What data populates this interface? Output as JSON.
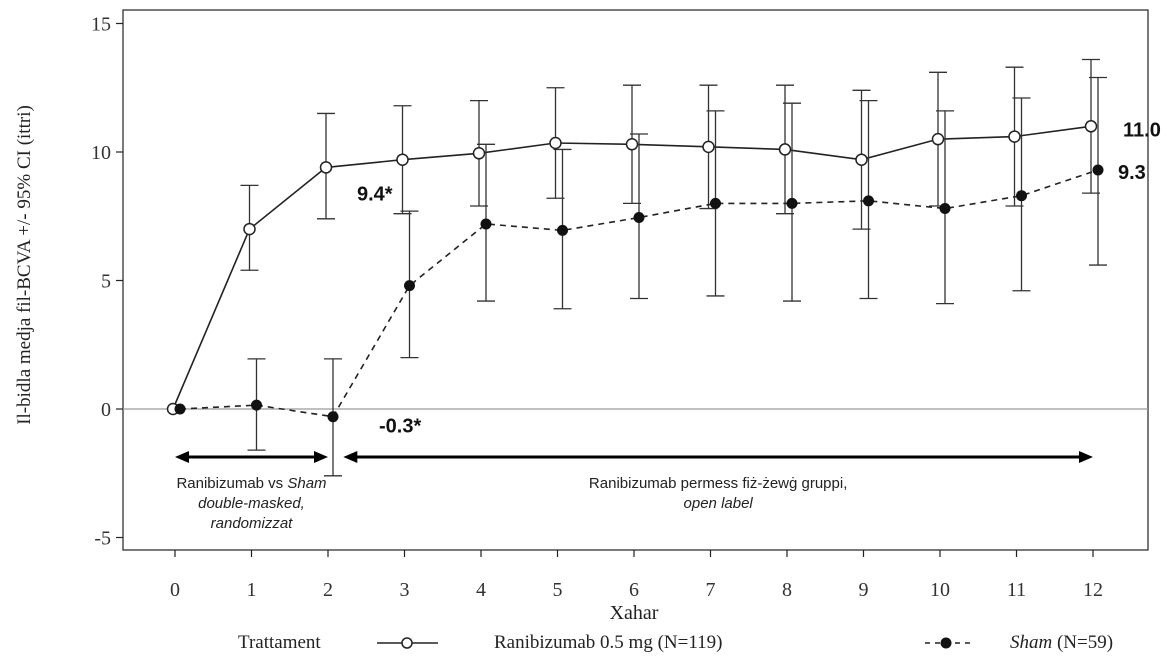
{
  "chart_data": {
    "type": "line",
    "xlabel": "Xahar",
    "ylabel": "Il-bidla medja fil-BCVA +/- 95% CI (ittri)",
    "xlim": [
      -0.6,
      12.6
    ],
    "ylim": [
      -5.5,
      15.5
    ],
    "x_ticks": [
      0,
      1,
      2,
      3,
      4,
      5,
      6,
      7,
      8,
      9,
      10,
      11,
      12
    ],
    "y_ticks": [
      -5,
      0,
      5,
      10,
      15
    ],
    "x_tick_labels": [
      "0",
      "1",
      "2",
      "3",
      "4",
      "5",
      "6",
      "7",
      "8",
      "9",
      "10",
      "11",
      "12"
    ],
    "y_tick_labels": [
      "-5",
      "0",
      "5",
      "10",
      "15"
    ],
    "reference_line_y": 0,
    "grid": false,
    "series": [
      {
        "name": "Ranibizumab 0.5 mg (N=119)",
        "marker": "open-circle",
        "line_style": "solid",
        "x": [
          0,
          1,
          2,
          3,
          4,
          5,
          6,
          7,
          8,
          9,
          10,
          11,
          12
        ],
        "y": [
          0.0,
          7.0,
          9.4,
          9.7,
          9.95,
          10.35,
          10.3,
          10.2,
          10.1,
          9.7,
          10.5,
          10.6,
          11.0
        ],
        "ci_low": [
          0.0,
          5.4,
          7.4,
          7.6,
          7.9,
          8.2,
          8.0,
          7.8,
          7.6,
          7.0,
          7.9,
          7.9,
          8.4
        ],
        "ci_high": [
          0.0,
          8.7,
          11.5,
          11.8,
          12.0,
          12.5,
          12.6,
          12.6,
          12.6,
          12.4,
          13.1,
          13.3,
          13.6
        ]
      },
      {
        "name": "Sham (N=59)",
        "marker": "filled-circle",
        "line_style": "dashed",
        "x": [
          0,
          1,
          2,
          3,
          4,
          5,
          6,
          7,
          8,
          9,
          10,
          11,
          12
        ],
        "y": [
          0.0,
          0.15,
          -0.3,
          4.8,
          7.2,
          6.95,
          7.45,
          8.0,
          8.0,
          8.1,
          7.8,
          8.3,
          9.3
        ],
        "ci_low": [
          0.0,
          -1.6,
          -2.6,
          2.0,
          4.2,
          3.9,
          4.3,
          4.4,
          4.2,
          4.3,
          4.1,
          4.6,
          5.6
        ],
        "ci_high": [
          0.0,
          1.95,
          1.95,
          7.7,
          10.3,
          10.1,
          10.7,
          11.6,
          11.9,
          12.0,
          11.6,
          12.1,
          12.9
        ]
      }
    ],
    "annotations": [
      {
        "text": "9.4*",
        "x": 2,
        "y": 9.4,
        "series": 0
      },
      {
        "text": "-0.3*",
        "x": 2,
        "y": -0.3,
        "series": 1
      },
      {
        "text": "11.0",
        "x": 12,
        "y": 11.0,
        "series": 0
      },
      {
        "text": "9.3",
        "x": 12,
        "y": 9.3,
        "series": 1
      }
    ],
    "phases": [
      {
        "x_from": 0,
        "x_to": 2,
        "line1": "Ranibizumab vs ",
        "line1_italic": "Sham",
        "line2": "double-masked,",
        "line3": "randomizzat"
      },
      {
        "x_from": 2.2,
        "x_to": 12,
        "line1": "Ranibizumab permess fiż-żewġ gruppi,",
        "line2": "open label"
      }
    ],
    "legend": {
      "placement": "bottom",
      "title": "Trattament",
      "entries": [
        {
          "label": "Ranibizumab 0.5 mg (N=119)"
        },
        {
          "label_italic": "Sham",
          "label_rest": " (N=59)"
        }
      ]
    }
  }
}
